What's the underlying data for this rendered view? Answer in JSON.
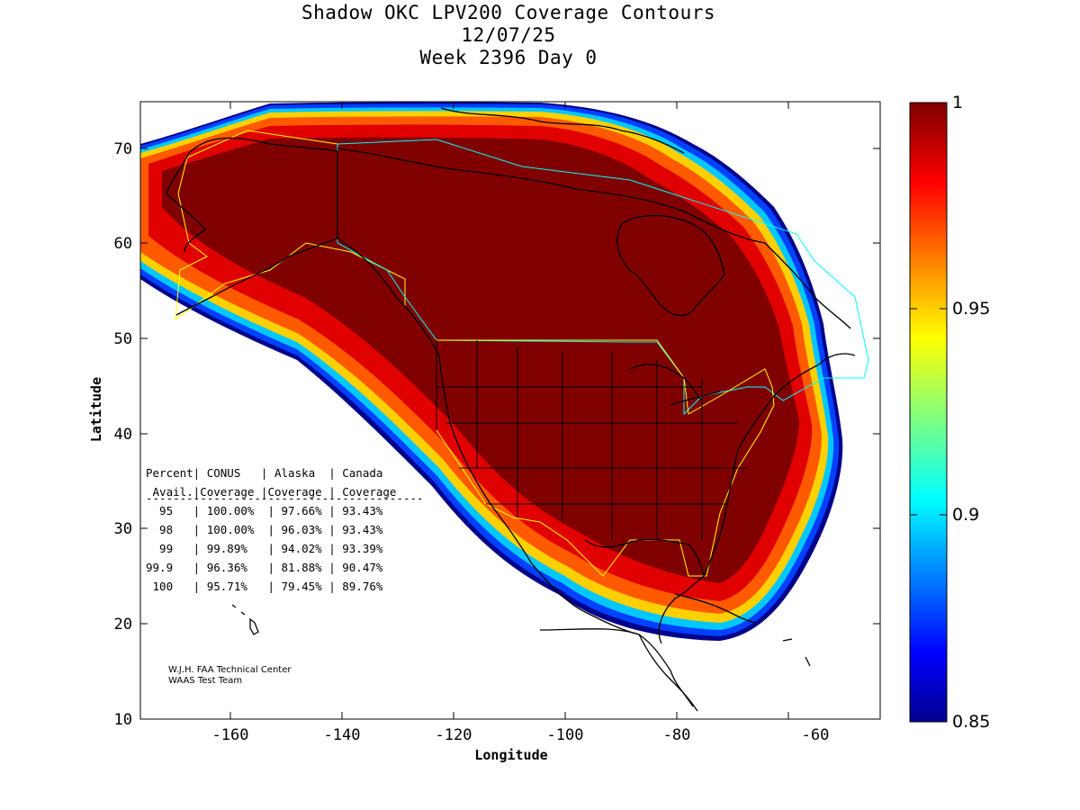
{
  "title": {
    "line1": "Shadow OKC LPV200 Coverage Contours",
    "line2": "12/07/25",
    "line3": "Week 2396 Day 0"
  },
  "axes": {
    "xlabel": "Longitude",
    "ylabel": "Latitude",
    "x_ticks": [
      "-160",
      "-140",
      "-120",
      "-100",
      "-80",
      "-60"
    ],
    "y_ticks": [
      "10",
      "20",
      "30",
      "40",
      "50",
      "60",
      "70"
    ],
    "x_range": [
      -175,
      -50
    ],
    "y_range": [
      10,
      75
    ]
  },
  "colorbar": {
    "ticks": [
      "1",
      "0.95",
      "0.9",
      "0.85"
    ],
    "range": [
      0.85,
      1.0
    ],
    "colormap": "jet"
  },
  "table": {
    "header1": "Percent| CONUS   | Alaska  | Canada",
    "header2": " Avail.|Coverage |Coverage | Coverage",
    "separator": "-----------------------------------------",
    "rows": [
      "  95   | 100.00%  | 97.66% | 93.43%",
      "  98   | 100.00%  | 96.03% | 93.43%",
      "  99   | 99.89%   | 94.02% | 93.39%",
      "99.9   | 96.36%   | 81.88% | 90.47%",
      " 100   | 95.71%   | 79.45% | 89.76%"
    ]
  },
  "credit": {
    "line1": "W.J.H. FAA Technical Center",
    "line2": "WAAS Test Team"
  },
  "colors": {
    "dark_red": "#800000",
    "red": "#d00000",
    "orange": "#ff6000",
    "yellow": "#ffe000",
    "cyan": "#00d8ff",
    "blue": "#0030ff",
    "navy": "#00008a",
    "region_yellow": "#ffff00",
    "region_cyan": "#00ffff"
  }
}
